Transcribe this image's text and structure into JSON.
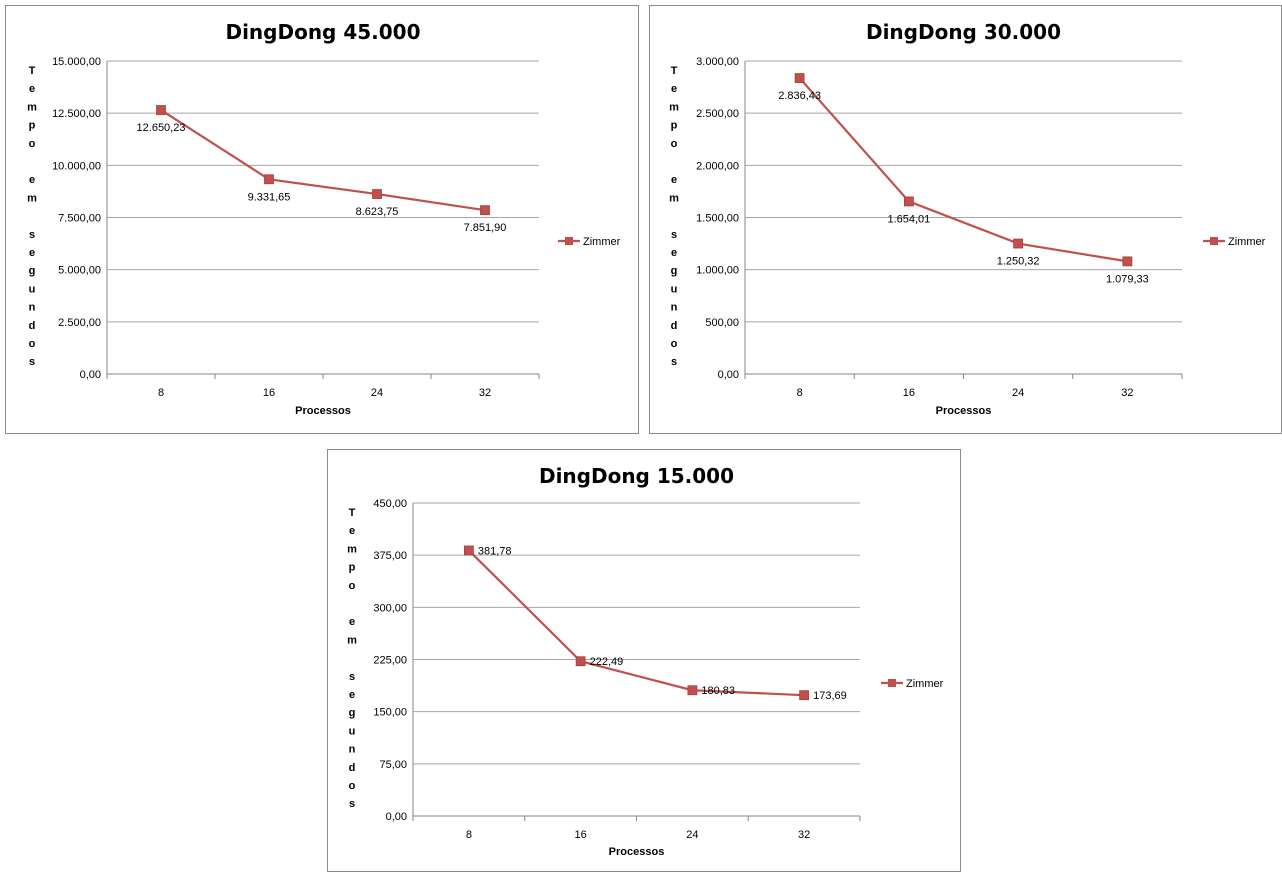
{
  "chart_data": [
    {
      "type": "line",
      "title": "DingDong 45.000",
      "xlabel": "Processos",
      "ylabel": "Tempo em segundos",
      "ylabel_chars": [
        "T",
        "e",
        "m",
        "p",
        "o",
        "",
        "e",
        "m",
        "",
        "s",
        "e",
        "g",
        "u",
        "n",
        "d",
        "o",
        "s"
      ],
      "categories": [
        "8",
        "16",
        "24",
        "32"
      ],
      "yticks": [
        "0,00",
        "2.500,00",
        "5.000,00",
        "7.500,00",
        "10.000,00",
        "12.500,00",
        "15.000,00"
      ],
      "ylim": [
        0,
        15000
      ],
      "series": [
        {
          "name": "Zimmer",
          "color": "#c0504d",
          "values": [
            12650.23,
            9331.65,
            8623.75,
            7851.9
          ],
          "labels": [
            "12.650,23",
            "9.331,65",
            "8.623,75",
            "7.851,90"
          ]
        }
      ],
      "label_position": "below",
      "legend": "right",
      "grid": true
    },
    {
      "type": "line",
      "title": "DingDong 30.000",
      "xlabel": "Processos",
      "ylabel": "Tempo em segundos",
      "ylabel_chars": [
        "T",
        "e",
        "m",
        "p",
        "o",
        "",
        "e",
        "m",
        "",
        "s",
        "e",
        "g",
        "u",
        "n",
        "d",
        "o",
        "s"
      ],
      "categories": [
        "8",
        "16",
        "24",
        "32"
      ],
      "yticks": [
        "0,00",
        "500,00",
        "1.000,00",
        "1.500,00",
        "2.000,00",
        "2.500,00",
        "3.000,00"
      ],
      "ylim": [
        0,
        3000
      ],
      "series": [
        {
          "name": "Zimmer",
          "color": "#c0504d",
          "values": [
            2836.43,
            1654.01,
            1250.32,
            1079.33
          ],
          "labels": [
            "2.836,43",
            "1.654,01",
            "1.250,32",
            "1.079,33"
          ]
        }
      ],
      "label_position": "below",
      "legend": "right",
      "grid": true
    },
    {
      "type": "line",
      "title": "DingDong 15.000",
      "xlabel": "Processos",
      "ylabel": "Tempo em segundos",
      "ylabel_chars": [
        "T",
        "e",
        "m",
        "p",
        "o",
        "",
        "e",
        "m",
        "",
        "s",
        "e",
        "g",
        "u",
        "n",
        "d",
        "o",
        "s"
      ],
      "categories": [
        "8",
        "16",
        "24",
        "32"
      ],
      "yticks": [
        "0,00",
        "75,00",
        "150,00",
        "225,00",
        "300,00",
        "375,00",
        "450,00"
      ],
      "ylim": [
        0,
        450
      ],
      "series": [
        {
          "name": "Zimmer",
          "color": "#c0504d",
          "values": [
            381.78,
            222.49,
            180.83,
            173.69
          ],
          "labels": [
            "381,78",
            "222,49",
            "180,83",
            "173,69"
          ]
        }
      ],
      "label_position": "right",
      "legend": "right",
      "grid": true
    }
  ]
}
